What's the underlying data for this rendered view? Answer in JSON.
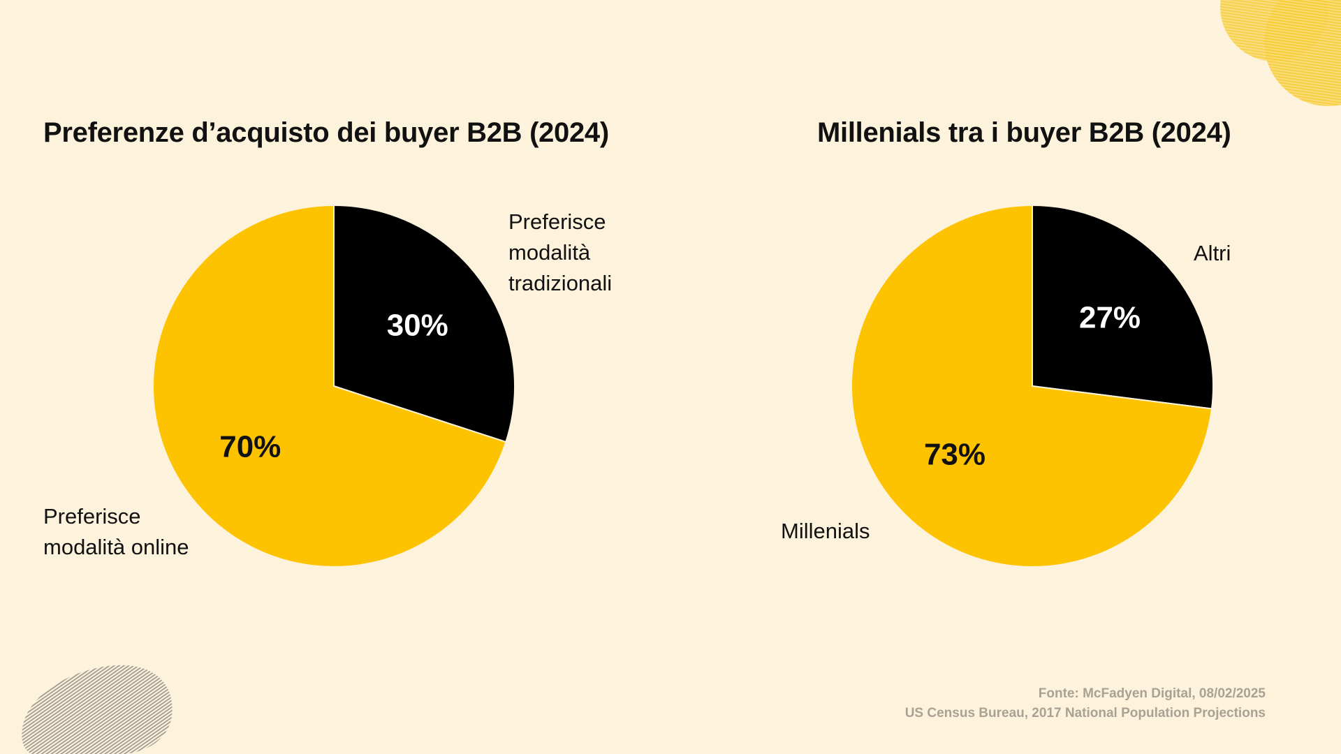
{
  "colors": {
    "background": "#fdf3dc",
    "accent_yellow": "#fdc300",
    "slice_dark": "#000000",
    "text": "#111111",
    "footer_text": "#a9a294"
  },
  "chart_data": [
    {
      "type": "pie",
      "title": "Preferenze d’acquisto dei buyer B2B (2024)",
      "slices": [
        {
          "label": "Preferisce\nmodalità online",
          "value": 70,
          "value_label": "70%",
          "color": "#fdc300"
        },
        {
          "label": "Preferisce\nmodalità\ntradizionali",
          "value": 30,
          "value_label": "30%",
          "color": "#000000"
        }
      ],
      "legend": "none"
    },
    {
      "type": "pie",
      "title": "Millenials tra i buyer B2B (2024)",
      "slices": [
        {
          "label": "Millenials",
          "value": 73,
          "value_label": "73%",
          "color": "#fdc300"
        },
        {
          "label": "Altri",
          "value": 27,
          "value_label": "27%",
          "color": "#000000"
        }
      ],
      "legend": "none"
    }
  ],
  "footer": {
    "source_line_1": "Fonte: McFadyen Digital, 08/02/2025",
    "source_line_2": "US Census Bureau, 2017 National Population Projections"
  }
}
